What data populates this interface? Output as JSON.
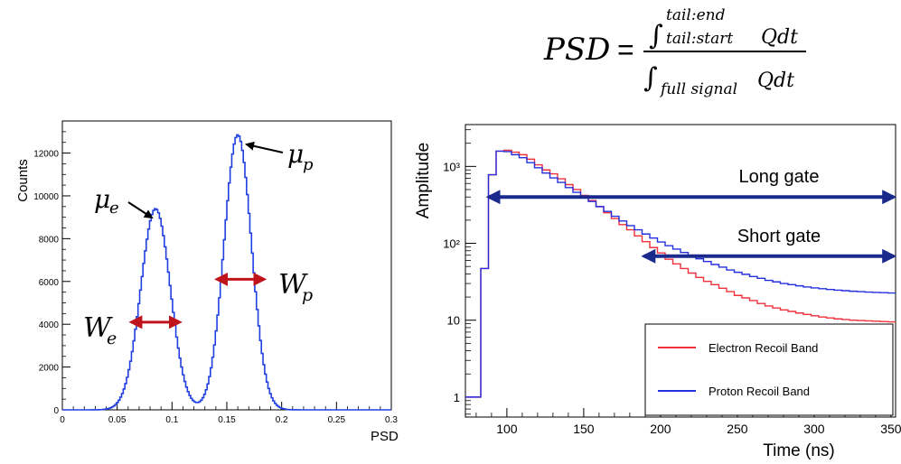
{
  "formula": {
    "lhs": "PSD",
    "eq": "=",
    "num_lower": "tail:start",
    "num_upper": "tail:end",
    "num_tail": "Qdt",
    "den_lower": "full signal",
    "den_tail": "Qdt"
  },
  "chart_data": [
    {
      "type": "line",
      "xlabel": "PSD",
      "ylabel": "Counts",
      "xlim": [
        0,
        0.3
      ],
      "ylim": [
        0,
        13500
      ],
      "x_ticks": [
        0,
        0.05,
        0.1,
        0.15,
        0.2,
        0.25,
        0.3
      ],
      "x_tick_labels": [
        "0",
        "0.05",
        "0.1",
        "0.15",
        "0.2",
        "0.25",
        "0.3"
      ],
      "y_ticks": [
        0,
        2000,
        4000,
        6000,
        8000,
        10000,
        12000
      ],
      "y_tick_labels": [
        "0",
        "2000",
        "4000",
        "6000",
        "8000",
        "10000",
        "12000"
      ],
      "grid": false,
      "peaks": [
        {
          "center": 0.085,
          "amplitude": 9400,
          "sigma": 0.0135
        },
        {
          "center": 0.16,
          "amplitude": 12850,
          "sigma": 0.0125
        }
      ],
      "annotations": {
        "mu_e": {
          "main": "μ",
          "sub": "e"
        },
        "mu_p": {
          "main": "μ",
          "sub": "p"
        },
        "w_e": {
          "main": "W",
          "sub": "e",
          "x_range": [
            0.063,
            0.107
          ],
          "y": 4100
        },
        "w_p": {
          "main": "W",
          "sub": "p",
          "x_range": [
            0.141,
            0.184
          ],
          "y": 6100
        }
      },
      "colors": {
        "curve": "#1f3fe0",
        "arrow": "#c0141c"
      }
    },
    {
      "type": "line",
      "xlabel": "Time (ns)",
      "ylabel": "Amplitude",
      "xlim": [
        73,
        353
      ],
      "ylim": [
        0.55,
        3500
      ],
      "log_y": true,
      "x_ticks": [
        100,
        150,
        200,
        250,
        300,
        350
      ],
      "x_tick_labels": [
        "100",
        "150",
        "200",
        "250",
        "300",
        "350"
      ],
      "y_ticks": [
        1,
        10,
        100,
        1000
      ],
      "y_tick_labels": [
        "1",
        "10",
        "10²",
        "10³"
      ],
      "grid": false,
      "legend": "bottom-right",
      "series": [
        {
          "name": "Electron Recoil Band",
          "color": "#f0303a",
          "x": [
            73,
            83,
            88,
            93,
            98,
            103,
            108,
            113,
            118,
            123,
            128,
            133,
            138,
            143,
            148,
            153,
            158,
            163,
            168,
            173,
            178,
            183,
            188,
            193,
            198,
            203,
            208,
            213,
            218,
            223,
            228,
            233,
            238,
            243,
            248,
            253,
            258,
            263,
            268,
            273,
            278,
            283,
            288,
            293,
            298,
            303,
            308,
            313,
            318,
            323,
            328,
            333,
            338,
            343,
            348
          ],
          "y": [
            1,
            47,
            780,
            1580,
            1620,
            1530,
            1420,
            1240,
            1050,
            900,
            800,
            690,
            580,
            500,
            420,
            360,
            300,
            250,
            210,
            175,
            150,
            125,
            105,
            88,
            75,
            62,
            54,
            47,
            41,
            36,
            32,
            29,
            26,
            23.5,
            21,
            19.5,
            18,
            16.5,
            15.3,
            14.4,
            13.6,
            13,
            12.4,
            11.9,
            11.4,
            11,
            10.7,
            10.4,
            10.2,
            10,
            9.9,
            9.8,
            9.7,
            9.6,
            9.5
          ]
        },
        {
          "name": "Proton Recoil Band",
          "color": "#2430e0",
          "x": [
            73,
            83,
            88,
            93,
            98,
            103,
            108,
            113,
            118,
            123,
            128,
            133,
            138,
            143,
            148,
            153,
            158,
            163,
            168,
            173,
            178,
            183,
            188,
            193,
            198,
            203,
            208,
            213,
            218,
            223,
            228,
            233,
            238,
            243,
            248,
            253,
            258,
            263,
            268,
            273,
            278,
            283,
            288,
            293,
            298,
            303,
            308,
            313,
            318,
            323,
            328,
            333,
            338,
            343,
            348
          ],
          "y": [
            1,
            47,
            780,
            1580,
            1560,
            1420,
            1300,
            1120,
            960,
            820,
            710,
            620,
            530,
            460,
            400,
            350,
            300,
            260,
            225,
            195,
            170,
            150,
            132,
            117,
            104,
            93,
            84,
            76,
            69,
            63,
            58,
            53,
            49,
            45,
            42,
            39.5,
            37,
            35,
            33,
            31.5,
            30,
            29,
            28,
            27,
            26.3,
            25.7,
            25.1,
            24.6,
            24.2,
            23.8,
            23.5,
            23.2,
            23,
            22.8,
            22.6
          ]
        }
      ],
      "gates": [
        {
          "label": "Long gate",
          "x_start": 87,
          "x_end": 353,
          "y": 400
        },
        {
          "label": "Short gate",
          "x_start": 188,
          "x_end": 353,
          "y": 68
        }
      ],
      "gate_color": "#1a2a8c"
    }
  ]
}
